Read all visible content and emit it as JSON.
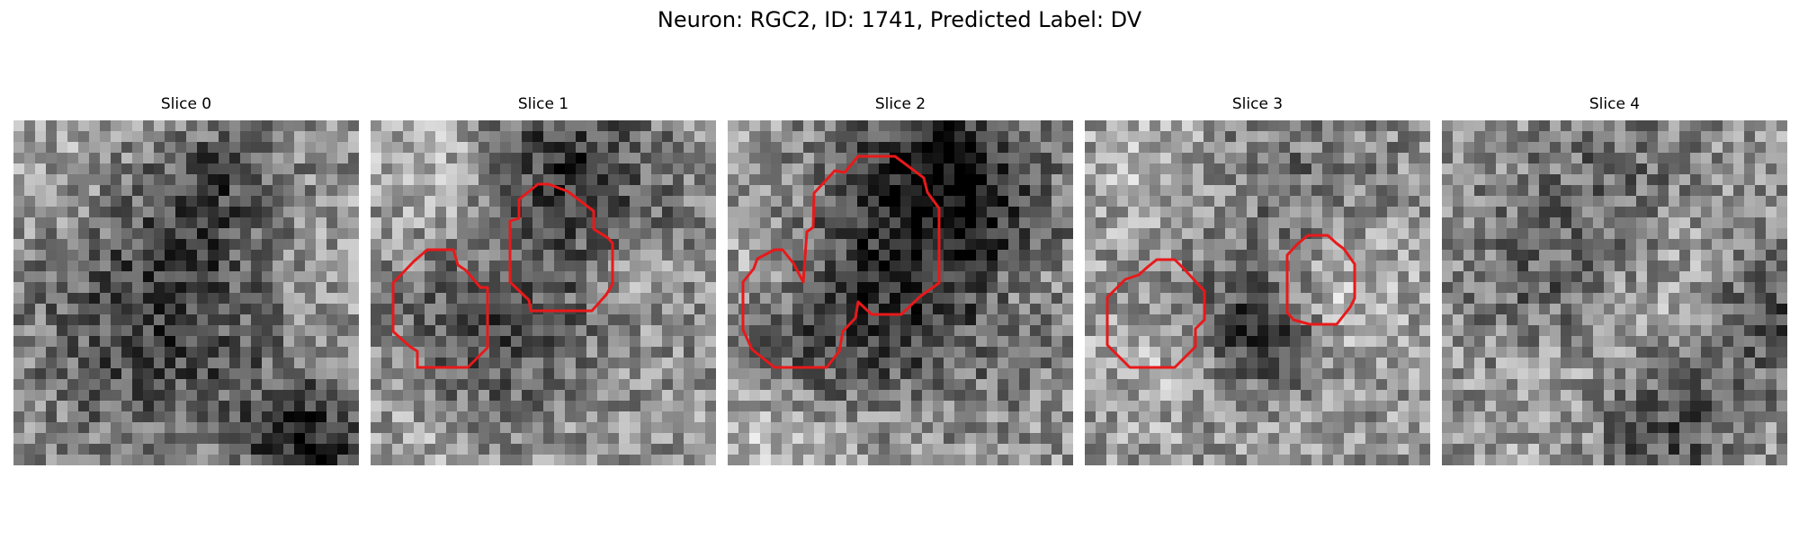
{
  "figure": {
    "title": "Neuron: RGC2, ID: 1741, Predicted Label: DV"
  },
  "colors": {
    "background": "#ffffff",
    "contour": "#e8191a",
    "colormap": "grayscale"
  },
  "panels": [
    {
      "title": "Slice 0",
      "roi_count": 0
    },
    {
      "title": "Slice 1",
      "roi_count": 2
    },
    {
      "title": "Slice 2",
      "roi_count": 2
    },
    {
      "title": "Slice 3",
      "roi_count": 2
    },
    {
      "title": "Slice 4",
      "roi_count": 0
    }
  ]
}
